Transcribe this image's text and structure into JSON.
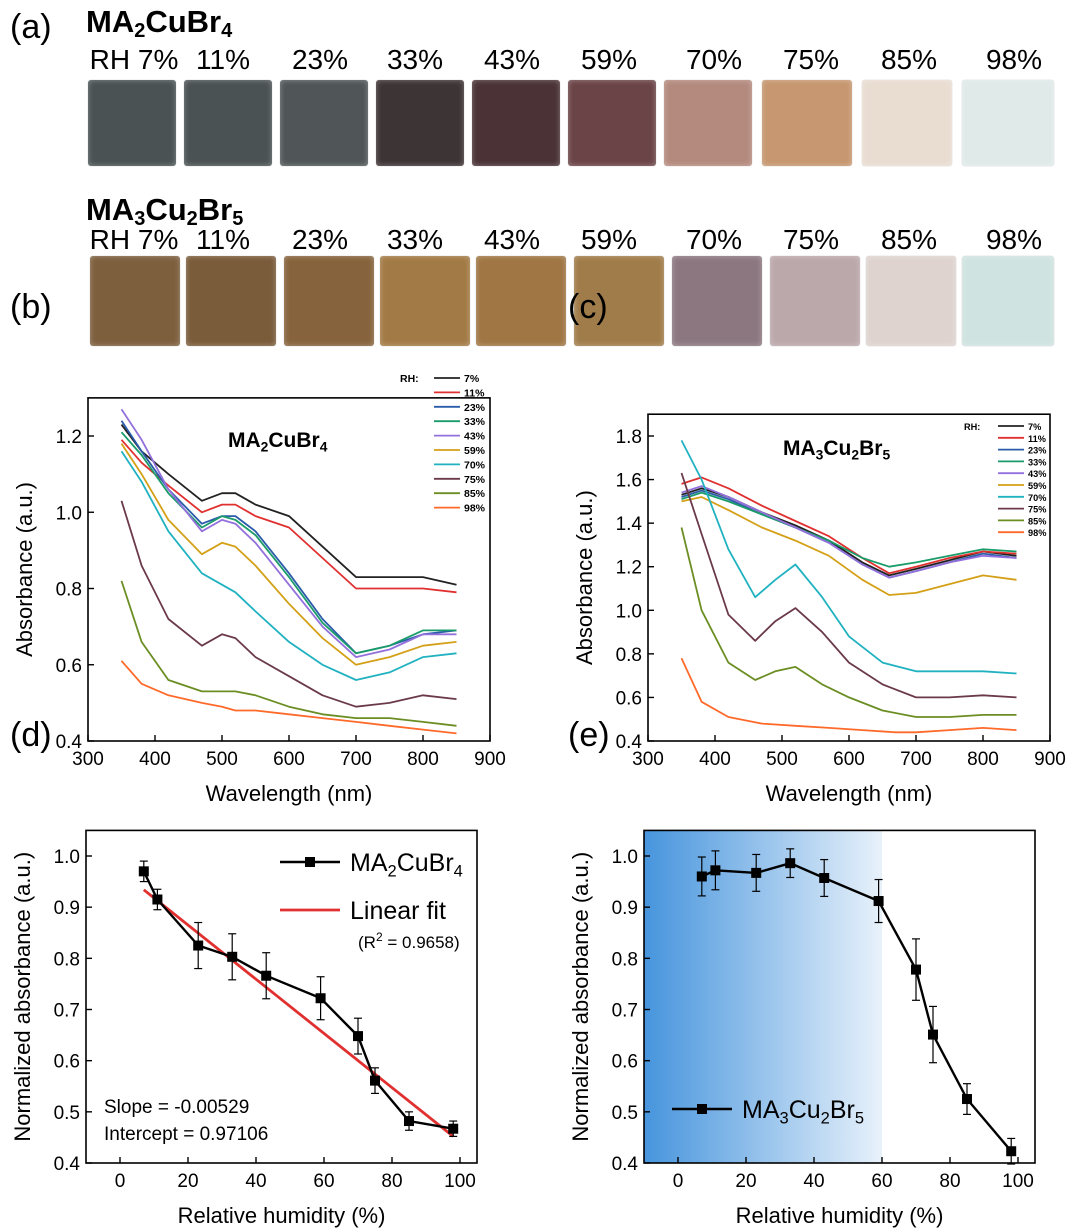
{
  "panel_a": {
    "tag": "(a)",
    "materials": [
      {
        "formula_parts": [
          "MA",
          "2",
          "CuBr",
          "4"
        ],
        "rh_labels": [
          "RH 7%",
          "11%",
          "23%",
          "33%",
          "43%",
          "59%",
          "70%",
          "75%",
          "85%",
          "98%"
        ],
        "swatch_colors": [
          "#4a5253",
          "#4b5253",
          "#505658",
          "#3d3436",
          "#4a3236",
          "#6b4447",
          "#b48a7e",
          "#c69770",
          "#e9ddd2",
          "#dfeae9"
        ]
      },
      {
        "formula_parts": [
          "MA",
          "3",
          "Cu",
          "2",
          "Br",
          "5"
        ],
        "rh_labels": [
          "RH 7%",
          "11%",
          "23%",
          "33%",
          "43%",
          "59%",
          "70%",
          "75%",
          "85%",
          "98%"
        ],
        "swatch_colors": [
          "#7d5f3d",
          "#7a5b3a",
          "#86633c",
          "#a27a45",
          "#9f7644",
          "#a07c4a",
          "#8c7780",
          "#bba8ab",
          "#ded3cf",
          "#cfe3e1"
        ]
      }
    ]
  },
  "panel_tags": [
    "(b)",
    "(c)",
    "(d)",
    "(e)"
  ],
  "chart_data": [
    {
      "type": "line",
      "panel": "(b)",
      "title_parts": [
        "MA",
        "2",
        "CuBr",
        "4"
      ],
      "xlabel": "Wavelength (nm)",
      "ylabel": "Absorbance (a.u.)",
      "xlim": [
        300,
        900
      ],
      "ylim": [
        0.4,
        1.3
      ],
      "xticks": [
        300,
        400,
        500,
        600,
        700,
        800,
        900
      ],
      "yticks": [
        0.4,
        0.6,
        0.8,
        1.0,
        1.2
      ],
      "legend_title": "RH:",
      "legend_position": "top-right",
      "series": [
        {
          "name": "7%",
          "color": "#222222",
          "x": [
            350,
            380,
            420,
            470,
            500,
            520,
            550,
            600,
            650,
            700,
            750,
            800,
            850
          ],
          "y": [
            1.23,
            1.16,
            1.1,
            1.03,
            1.05,
            1.05,
            1.02,
            0.99,
            0.91,
            0.83,
            0.83,
            0.83,
            0.81
          ]
        },
        {
          "name": "11%",
          "color": "#e03030",
          "x": [
            350,
            380,
            420,
            470,
            500,
            520,
            550,
            600,
            650,
            700,
            750,
            800,
            850
          ],
          "y": [
            1.19,
            1.13,
            1.07,
            1.0,
            1.02,
            1.02,
            0.99,
            0.96,
            0.88,
            0.8,
            0.8,
            0.8,
            0.79
          ]
        },
        {
          "name": "23%",
          "color": "#2a5caa",
          "x": [
            350,
            380,
            420,
            470,
            500,
            520,
            550,
            600,
            650,
            700,
            750,
            800,
            850
          ],
          "y": [
            1.24,
            1.16,
            1.06,
            0.97,
            0.99,
            0.99,
            0.95,
            0.84,
            0.72,
            0.63,
            0.65,
            0.68,
            0.69
          ]
        },
        {
          "name": "33%",
          "color": "#1a9c6a",
          "x": [
            350,
            380,
            420,
            470,
            500,
            520,
            550,
            600,
            650,
            700,
            750,
            800,
            850
          ],
          "y": [
            1.21,
            1.15,
            1.05,
            0.96,
            0.99,
            0.98,
            0.94,
            0.83,
            0.71,
            0.63,
            0.65,
            0.69,
            0.69
          ]
        },
        {
          "name": "43%",
          "color": "#9370db",
          "x": [
            350,
            380,
            420,
            470,
            500,
            520,
            550,
            600,
            650,
            700,
            750,
            800,
            850
          ],
          "y": [
            1.27,
            1.19,
            1.06,
            0.95,
            0.98,
            0.97,
            0.92,
            0.81,
            0.7,
            0.62,
            0.64,
            0.68,
            0.68
          ]
        },
        {
          "name": "59%",
          "color": "#d4a017",
          "x": [
            350,
            380,
            420,
            470,
            500,
            520,
            550,
            600,
            650,
            700,
            750,
            800,
            850
          ],
          "y": [
            1.18,
            1.1,
            0.98,
            0.89,
            0.92,
            0.91,
            0.86,
            0.76,
            0.67,
            0.6,
            0.62,
            0.65,
            0.66
          ]
        },
        {
          "name": "70%",
          "color": "#20b2c0",
          "x": [
            350,
            380,
            420,
            470,
            500,
            520,
            550,
            600,
            650,
            700,
            750,
            800,
            850
          ],
          "y": [
            1.16,
            1.08,
            0.95,
            0.84,
            0.81,
            0.79,
            0.74,
            0.66,
            0.6,
            0.56,
            0.58,
            0.62,
            0.63
          ]
        },
        {
          "name": "75%",
          "color": "#6b3a4a",
          "x": [
            350,
            380,
            420,
            470,
            500,
            520,
            550,
            600,
            650,
            700,
            750,
            800,
            850
          ],
          "y": [
            1.03,
            0.86,
            0.72,
            0.65,
            0.68,
            0.67,
            0.62,
            0.57,
            0.52,
            0.49,
            0.5,
            0.52,
            0.51
          ]
        },
        {
          "name": "85%",
          "color": "#6b8e23",
          "x": [
            350,
            380,
            420,
            470,
            500,
            520,
            550,
            600,
            650,
            700,
            750,
            800,
            850
          ],
          "y": [
            0.82,
            0.66,
            0.56,
            0.53,
            0.53,
            0.53,
            0.52,
            0.49,
            0.47,
            0.46,
            0.46,
            0.45,
            0.44
          ]
        },
        {
          "name": "98%",
          "color": "#ff6a2a",
          "x": [
            350,
            380,
            420,
            470,
            500,
            520,
            550,
            600,
            650,
            700,
            750,
            800,
            850
          ],
          "y": [
            0.61,
            0.55,
            0.52,
            0.5,
            0.49,
            0.48,
            0.48,
            0.47,
            0.46,
            0.45,
            0.44,
            0.43,
            0.42
          ]
        }
      ]
    },
    {
      "type": "line",
      "panel": "(c)",
      "title_parts": [
        "MA",
        "3",
        "Cu",
        "2",
        "Br",
        "5"
      ],
      "xlabel": "Wavelength (nm)",
      "ylabel": "Absorbance (a.u.)",
      "xlim": [
        300,
        900
      ],
      "ylim": [
        0.4,
        1.9
      ],
      "xticks": [
        300,
        400,
        500,
        600,
        700,
        800,
        900
      ],
      "yticks": [
        0.4,
        0.6,
        0.8,
        1.0,
        1.2,
        1.4,
        1.6,
        1.8
      ],
      "legend_title": "RH:",
      "legend_position": "top-right",
      "series": [
        {
          "name": "7%",
          "color": "#222222",
          "x": [
            350,
            380,
            420,
            470,
            520,
            570,
            620,
            660,
            700,
            750,
            800,
            850
          ],
          "y": [
            1.53,
            1.56,
            1.52,
            1.45,
            1.39,
            1.32,
            1.22,
            1.16,
            1.19,
            1.23,
            1.27,
            1.25
          ]
        },
        {
          "name": "11%",
          "color": "#e03030",
          "x": [
            350,
            380,
            420,
            470,
            520,
            570,
            620,
            660,
            700,
            750,
            800,
            850
          ],
          "y": [
            1.58,
            1.61,
            1.56,
            1.48,
            1.41,
            1.34,
            1.24,
            1.17,
            1.2,
            1.24,
            1.27,
            1.26
          ]
        },
        {
          "name": "23%",
          "color": "#2a5caa",
          "x": [
            350,
            380,
            420,
            470,
            520,
            570,
            620,
            660,
            700,
            750,
            800,
            850
          ],
          "y": [
            1.52,
            1.55,
            1.51,
            1.44,
            1.38,
            1.31,
            1.21,
            1.15,
            1.18,
            1.22,
            1.26,
            1.24
          ]
        },
        {
          "name": "33%",
          "color": "#1a9c6a",
          "x": [
            350,
            380,
            420,
            470,
            520,
            570,
            620,
            660,
            700,
            750,
            800,
            850
          ],
          "y": [
            1.51,
            1.54,
            1.5,
            1.44,
            1.38,
            1.32,
            1.24,
            1.2,
            1.22,
            1.25,
            1.28,
            1.27
          ]
        },
        {
          "name": "43%",
          "color": "#9370db",
          "x": [
            350,
            380,
            420,
            470,
            520,
            570,
            620,
            660,
            700,
            750,
            800,
            850
          ],
          "y": [
            1.54,
            1.57,
            1.52,
            1.45,
            1.38,
            1.31,
            1.21,
            1.15,
            1.18,
            1.22,
            1.25,
            1.24
          ]
        },
        {
          "name": "59%",
          "color": "#d4a017",
          "x": [
            350,
            380,
            420,
            470,
            520,
            570,
            620,
            660,
            700,
            750,
            800,
            850
          ],
          "y": [
            1.5,
            1.52,
            1.46,
            1.38,
            1.32,
            1.25,
            1.14,
            1.07,
            1.08,
            1.12,
            1.16,
            1.14
          ]
        },
        {
          "name": "70%",
          "color": "#20b2c0",
          "x": [
            350,
            380,
            420,
            460,
            490,
            520,
            560,
            600,
            650,
            700,
            750,
            800,
            850
          ],
          "y": [
            1.78,
            1.6,
            1.28,
            1.06,
            1.14,
            1.21,
            1.06,
            0.88,
            0.76,
            0.72,
            0.72,
            0.72,
            0.71
          ]
        },
        {
          "name": "75%",
          "color": "#6b3a4a",
          "x": [
            350,
            380,
            420,
            460,
            490,
            520,
            560,
            600,
            650,
            700,
            750,
            800,
            850
          ],
          "y": [
            1.63,
            1.35,
            0.98,
            0.86,
            0.95,
            1.01,
            0.9,
            0.76,
            0.66,
            0.6,
            0.6,
            0.61,
            0.6
          ]
        },
        {
          "name": "85%",
          "color": "#6b8e23",
          "x": [
            350,
            380,
            420,
            460,
            490,
            520,
            560,
            600,
            650,
            700,
            750,
            800,
            850
          ],
          "y": [
            1.38,
            1.0,
            0.76,
            0.68,
            0.72,
            0.74,
            0.66,
            0.6,
            0.54,
            0.51,
            0.51,
            0.52,
            0.52
          ]
        },
        {
          "name": "98%",
          "color": "#ff6a2a",
          "x": [
            350,
            380,
            420,
            470,
            520,
            570,
            620,
            670,
            700,
            750,
            800,
            850
          ],
          "y": [
            0.78,
            0.58,
            0.51,
            0.48,
            0.47,
            0.46,
            0.45,
            0.44,
            0.44,
            0.45,
            0.46,
            0.45
          ]
        }
      ]
    },
    {
      "type": "scatter",
      "panel": "(d)",
      "xlabel": "Relative humidity (%)",
      "ylabel": "Normalized absorbance (a.u.)",
      "xlim": [
        -10,
        105
      ],
      "ylim": [
        0.4,
        1.05
      ],
      "xticks": [
        0,
        20,
        40,
        60,
        80,
        100
      ],
      "yticks": [
        0.4,
        0.5,
        0.6,
        0.7,
        0.8,
        0.9,
        1.0
      ],
      "legend_position": "top-right",
      "series": [
        {
          "name_parts": [
            "MA",
            "2",
            "CuBr",
            "4"
          ],
          "color": "#000000",
          "x": [
            7,
            11,
            23,
            33,
            43,
            59,
            70,
            75,
            85,
            98
          ],
          "y": [
            0.97,
            0.915,
            0.825,
            0.803,
            0.766,
            0.722,
            0.648,
            0.561,
            0.482,
            0.467
          ],
          "err": [
            0.02,
            0.02,
            0.045,
            0.045,
            0.045,
            0.042,
            0.035,
            0.025,
            0.018,
            0.015
          ]
        },
        {
          "name": "Linear fit",
          "color": "#e03030",
          "x": [
            7,
            98
          ],
          "y": [
            0.934,
            0.452
          ]
        }
      ],
      "r2_text": "(R",
      "r2_sup": "2",
      "r2_value": " = 0.9658)",
      "slope_text": "Slope = -0.00529",
      "intercept_text": "Intercept = 0.97106"
    },
    {
      "type": "scatter",
      "panel": "(e)",
      "xlabel": "Relative humidity (%)",
      "ylabel": "Normalized absorbance (a.u.)",
      "xlim": [
        -10,
        105
      ],
      "ylim": [
        0.4,
        1.05
      ],
      "xticks": [
        0,
        20,
        40,
        60,
        80,
        100
      ],
      "yticks": [
        0.4,
        0.5,
        0.6,
        0.7,
        0.8,
        0.9,
        1.0
      ],
      "legend_position": "bottom-left",
      "shaded_region_x": [
        -10,
        60
      ],
      "shade_color": "#3d8fdb",
      "series": [
        {
          "name_parts": [
            "MA",
            "3",
            "Cu",
            "2",
            "Br",
            "5"
          ],
          "color": "#000000",
          "x": [
            7,
            11,
            23,
            33,
            43,
            59,
            70,
            75,
            85,
            98
          ],
          "y": [
            0.96,
            0.972,
            0.967,
            0.986,
            0.957,
            0.912,
            0.778,
            0.651,
            0.525,
            0.423
          ],
          "err": [
            0.038,
            0.038,
            0.036,
            0.028,
            0.036,
            0.042,
            0.06,
            0.055,
            0.03,
            0.025
          ]
        }
      ]
    }
  ]
}
